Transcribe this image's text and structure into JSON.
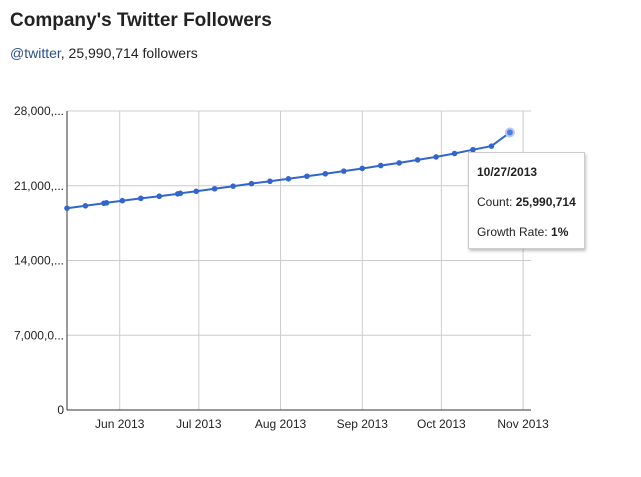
{
  "header": {
    "title": "Company's Twitter Followers",
    "handle": "@twitter",
    "followers_text": ", 25,990,714 followers"
  },
  "tooltip": {
    "date": "10/27/2013",
    "count_label": "Count: ",
    "count_value": "25,990,714",
    "growth_label": "Growth Rate: ",
    "growth_value": "1%"
  },
  "chart_data": {
    "type": "line",
    "title": "",
    "xlabel": "",
    "ylabel": "",
    "series_color": "#3366cc",
    "highlight_color": "#4d7ee6",
    "grid": true,
    "ylim": [
      0,
      28000000
    ],
    "xlim": [
      "2013-05-12",
      "2013-11-04"
    ],
    "y_ticks": [
      {
        "value": 0,
        "label": "0"
      },
      {
        "value": 7000000,
        "label": "7,000,0..."
      },
      {
        "value": 14000000,
        "label": "14,000,..."
      },
      {
        "value": 21000000,
        "label": "21,000,..."
      },
      {
        "value": 28000000,
        "label": "28,000,..."
      }
    ],
    "x_ticks": [
      {
        "date": "2013-06-01",
        "label": "Jun 2013"
      },
      {
        "date": "2013-07-01",
        "label": "Jul 2013"
      },
      {
        "date": "2013-08-01",
        "label": "Aug 2013"
      },
      {
        "date": "2013-09-01",
        "label": "Sep 2013"
      },
      {
        "date": "2013-10-01",
        "label": "Oct 2013"
      },
      {
        "date": "2013-11-01",
        "label": "Nov 2013"
      }
    ],
    "series": [
      {
        "x": [
          "2013-05-12",
          "2013-05-19",
          "2013-05-26",
          "2013-05-27",
          "2013-06-02",
          "2013-06-09",
          "2013-06-16",
          "2013-06-23",
          "2013-06-24",
          "2013-06-30",
          "2013-07-07",
          "2013-07-14",
          "2013-07-21",
          "2013-07-28",
          "2013-08-04",
          "2013-08-11",
          "2013-08-18",
          "2013-08-25",
          "2013-09-01",
          "2013-09-08",
          "2013-09-15",
          "2013-09-22",
          "2013-09-29",
          "2013-10-06",
          "2013-10-13",
          "2013-10-20",
          "2013-10-27"
        ],
        "values": [
          18900000,
          19120000,
          19360000,
          19400000,
          19600000,
          19820000,
          20020000,
          20240000,
          20290000,
          20480000,
          20720000,
          20960000,
          21200000,
          21420000,
          21650000,
          21890000,
          22120000,
          22370000,
          22620000,
          22890000,
          23140000,
          23420000,
          23700000,
          24020000,
          24380000,
          24710000,
          25990714
        ]
      }
    ],
    "highlight_index": 26
  }
}
